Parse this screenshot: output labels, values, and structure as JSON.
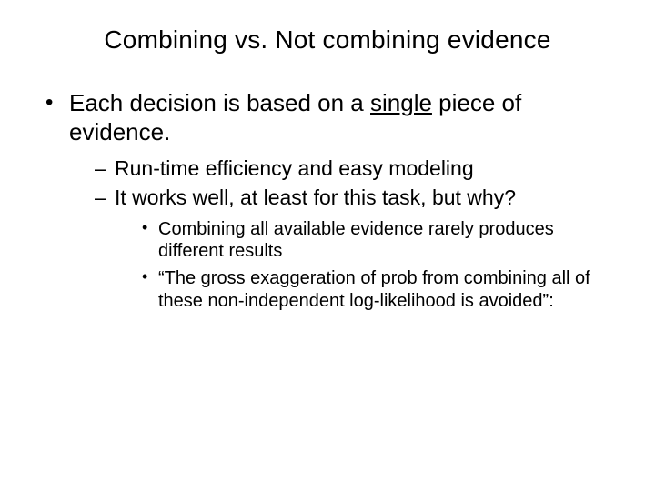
{
  "slide": {
    "title": "Combining vs. Not combining evidence",
    "bullet1_pre": "Each decision is based on a ",
    "bullet1_underlined": "single",
    "bullet1_post": " piece of evidence.",
    "sub1": "Run-time efficiency and easy modeling",
    "sub2": "It works well, at least for this task, but why?",
    "subsub1": "Combining all available evidence rarely produces different results",
    "subsub2": "“The gross exaggeration of prob from combining all of these non-independent log-likelihood is avoided”:"
  },
  "style": {
    "background_color": "#ffffff",
    "text_color": "#000000",
    "title_fontsize": 28,
    "lvl1_fontsize": 26,
    "lvl2_fontsize": 23,
    "lvl3_fontsize": 20,
    "font_family": "Arial"
  }
}
